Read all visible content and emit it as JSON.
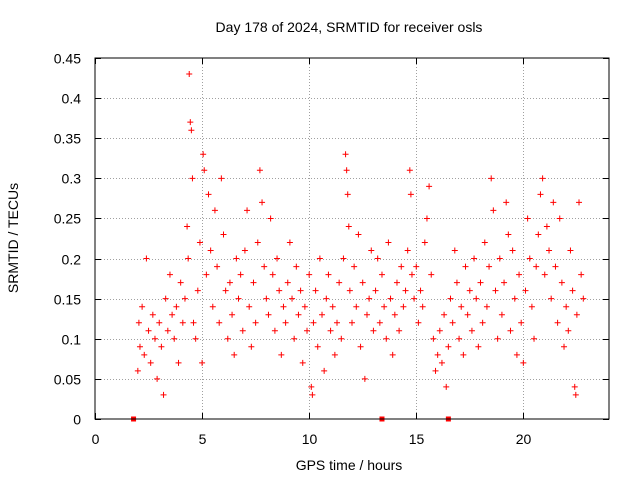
{
  "chart_data": {
    "type": "scatter",
    "title": "Day 178 of 2024, SRMTID for receiver osls",
    "xlabel": "GPS time / hours",
    "ylabel": "SRMTID / TECUs",
    "xlim": [
      0,
      24
    ],
    "ylim": [
      0,
      0.45
    ],
    "x_ticks": [
      {
        "value": 0,
        "label": "0"
      },
      {
        "value": 5,
        "label": "5"
      },
      {
        "value": 10,
        "label": "10"
      },
      {
        "value": 15,
        "label": "15"
      },
      {
        "value": 20,
        "label": "20"
      }
    ],
    "y_ticks": [
      {
        "value": 0,
        "label": "0"
      },
      {
        "value": 0.05,
        "label": "0.05"
      },
      {
        "value": 0.1,
        "label": "0.1"
      },
      {
        "value": 0.15,
        "label": "0.15"
      },
      {
        "value": 0.2,
        "label": "0.2"
      },
      {
        "value": 0.25,
        "label": "0.25"
      },
      {
        "value": 0.3,
        "label": "0.3"
      },
      {
        "value": 0.35,
        "label": "0.35"
      },
      {
        "value": 0.4,
        "label": "0.4"
      },
      {
        "value": 0.45,
        "label": "0.45"
      }
    ],
    "grid": true,
    "marker": "+",
    "series_color": "#ff0000",
    "series": [
      {
        "name": "SRMTID",
        "points": [
          [
            2.0,
            0.06
          ],
          [
            2.05,
            0.12
          ],
          [
            2.1,
            0.09
          ],
          [
            2.2,
            0.14
          ],
          [
            2.3,
            0.08
          ],
          [
            2.4,
            0.2
          ],
          [
            2.5,
            0.11
          ],
          [
            2.6,
            0.07
          ],
          [
            2.7,
            0.13
          ],
          [
            2.8,
            0.1
          ],
          [
            2.9,
            0.05
          ],
          [
            3.0,
            0.12
          ],
          [
            3.1,
            0.09
          ],
          [
            3.2,
            0.03
          ],
          [
            3.3,
            0.15
          ],
          [
            3.4,
            0.11
          ],
          [
            3.5,
            0.18
          ],
          [
            3.6,
            0.13
          ],
          [
            3.7,
            0.1
          ],
          [
            3.8,
            0.14
          ],
          [
            3.9,
            0.07
          ],
          [
            4.0,
            0.17
          ],
          [
            4.1,
            0.12
          ],
          [
            4.2,
            0.15
          ],
          [
            4.3,
            0.24
          ],
          [
            4.35,
            0.2
          ],
          [
            4.4,
            0.43
          ],
          [
            4.45,
            0.37
          ],
          [
            4.5,
            0.36
          ],
          [
            4.55,
            0.3
          ],
          [
            4.6,
            0.12
          ],
          [
            4.7,
            0.1
          ],
          [
            4.8,
            0.16
          ],
          [
            4.9,
            0.22
          ],
          [
            5.0,
            0.07
          ],
          [
            5.05,
            0.33
          ],
          [
            5.1,
            0.31
          ],
          [
            5.2,
            0.18
          ],
          [
            5.3,
            0.28
          ],
          [
            5.4,
            0.21
          ],
          [
            5.5,
            0.14
          ],
          [
            5.6,
            0.26
          ],
          [
            5.7,
            0.19
          ],
          [
            5.8,
            0.12
          ],
          [
            5.9,
            0.3
          ],
          [
            6.0,
            0.23
          ],
          [
            6.1,
            0.16
          ],
          [
            6.2,
            0.1
          ],
          [
            6.3,
            0.17
          ],
          [
            6.4,
            0.13
          ],
          [
            6.5,
            0.08
          ],
          [
            6.6,
            0.2
          ],
          [
            6.7,
            0.15
          ],
          [
            6.8,
            0.18
          ],
          [
            6.9,
            0.11
          ],
          [
            7.0,
            0.21
          ],
          [
            7.1,
            0.26
          ],
          [
            7.2,
            0.14
          ],
          [
            7.3,
            0.09
          ],
          [
            7.4,
            0.17
          ],
          [
            7.5,
            0.12
          ],
          [
            7.6,
            0.22
          ],
          [
            7.7,
            0.31
          ],
          [
            7.8,
            0.27
          ],
          [
            7.9,
            0.19
          ],
          [
            8.0,
            0.15
          ],
          [
            8.1,
            0.13
          ],
          [
            8.2,
            0.25
          ],
          [
            8.3,
            0.18
          ],
          [
            8.4,
            0.11
          ],
          [
            8.5,
            0.2
          ],
          [
            8.6,
            0.16
          ],
          [
            8.7,
            0.08
          ],
          [
            8.8,
            0.14
          ],
          [
            8.9,
            0.12
          ],
          [
            9.0,
            0.17
          ],
          [
            9.1,
            0.22
          ],
          [
            9.2,
            0.15
          ],
          [
            9.3,
            0.1
          ],
          [
            9.4,
            0.19
          ],
          [
            9.5,
            0.13
          ],
          [
            9.6,
            0.16
          ],
          [
            9.7,
            0.07
          ],
          [
            9.8,
            0.14
          ],
          [
            9.9,
            0.11
          ],
          [
            10.0,
            0.18
          ],
          [
            10.1,
            0.04
          ],
          [
            10.15,
            0.03
          ],
          [
            10.2,
            0.12
          ],
          [
            10.3,
            0.16
          ],
          [
            10.4,
            0.09
          ],
          [
            10.5,
            0.2
          ],
          [
            10.6,
            0.13
          ],
          [
            10.7,
            0.06
          ],
          [
            10.8,
            0.15
          ],
          [
            10.9,
            0.18
          ],
          [
            11.0,
            0.11
          ],
          [
            11.1,
            0.14
          ],
          [
            11.2,
            0.08
          ],
          [
            11.3,
            0.12
          ],
          [
            11.4,
            0.17
          ],
          [
            11.5,
            0.1
          ],
          [
            11.6,
            0.2
          ],
          [
            11.7,
            0.33
          ],
          [
            11.75,
            0.31
          ],
          [
            11.8,
            0.28
          ],
          [
            11.85,
            0.24
          ],
          [
            11.9,
            0.16
          ],
          [
            12.0,
            0.12
          ],
          [
            12.1,
            0.19
          ],
          [
            12.2,
            0.14
          ],
          [
            12.3,
            0.23
          ],
          [
            12.4,
            0.09
          ],
          [
            12.5,
            0.17
          ],
          [
            12.6,
            0.05
          ],
          [
            12.7,
            0.13
          ],
          [
            12.8,
            0.15
          ],
          [
            12.9,
            0.21
          ],
          [
            13.0,
            0.11
          ],
          [
            13.1,
            0.16
          ],
          [
            13.2,
            0.2
          ],
          [
            13.3,
            0.12
          ],
          [
            13.4,
            0.18
          ],
          [
            13.5,
            0.14
          ],
          [
            13.6,
            0.1
          ],
          [
            13.7,
            0.22
          ],
          [
            13.8,
            0.15
          ],
          [
            13.9,
            0.08
          ],
          [
            14.0,
            0.13
          ],
          [
            14.1,
            0.17
          ],
          [
            14.2,
            0.11
          ],
          [
            14.3,
            0.19
          ],
          [
            14.4,
            0.14
          ],
          [
            14.5,
            0.16
          ],
          [
            14.6,
            0.21
          ],
          [
            14.7,
            0.31
          ],
          [
            14.75,
            0.28
          ],
          [
            14.8,
            0.18
          ],
          [
            14.9,
            0.15
          ],
          [
            15.0,
            0.19
          ],
          [
            15.1,
            0.12
          ],
          [
            15.2,
            0.16
          ],
          [
            15.3,
            0.14
          ],
          [
            15.4,
            0.22
          ],
          [
            15.5,
            0.25
          ],
          [
            15.6,
            0.29
          ],
          [
            15.7,
            0.18
          ],
          [
            15.8,
            0.1
          ],
          [
            15.9,
            0.06
          ],
          [
            16.0,
            0.08
          ],
          [
            16.1,
            0.11
          ],
          [
            16.2,
            0.07
          ],
          [
            16.3,
            0.13
          ],
          [
            16.4,
            0.04
          ],
          [
            16.5,
            0.09
          ],
          [
            16.6,
            0.15
          ],
          [
            16.7,
            0.12
          ],
          [
            16.8,
            0.21
          ],
          [
            16.9,
            0.17
          ],
          [
            17.0,
            0.1
          ],
          [
            17.1,
            0.14
          ],
          [
            17.2,
            0.08
          ],
          [
            17.3,
            0.19
          ],
          [
            17.4,
            0.13
          ],
          [
            17.5,
            0.16
          ],
          [
            17.6,
            0.11
          ],
          [
            17.7,
            0.2
          ],
          [
            17.8,
            0.15
          ],
          [
            17.9,
            0.09
          ],
          [
            18.0,
            0.17
          ],
          [
            18.1,
            0.12
          ],
          [
            18.2,
            0.22
          ],
          [
            18.3,
            0.14
          ],
          [
            18.4,
            0.19
          ],
          [
            18.5,
            0.3
          ],
          [
            18.6,
            0.26
          ],
          [
            18.7,
            0.16
          ],
          [
            18.8,
            0.1
          ],
          [
            18.9,
            0.2
          ],
          [
            19.0,
            0.13
          ],
          [
            19.1,
            0.17
          ],
          [
            19.2,
            0.27
          ],
          [
            19.3,
            0.23
          ],
          [
            19.4,
            0.11
          ],
          [
            19.5,
            0.21
          ],
          [
            19.6,
            0.15
          ],
          [
            19.7,
            0.08
          ],
          [
            19.8,
            0.18
          ],
          [
            19.9,
            0.12
          ],
          [
            20.0,
            0.07
          ],
          [
            20.1,
            0.16
          ],
          [
            20.2,
            0.25
          ],
          [
            20.3,
            0.2
          ],
          [
            20.4,
            0.14
          ],
          [
            20.5,
            0.1
          ],
          [
            20.6,
            0.19
          ],
          [
            20.7,
            0.23
          ],
          [
            20.8,
            0.28
          ],
          [
            20.9,
            0.3
          ],
          [
            21.0,
            0.18
          ],
          [
            21.1,
            0.24
          ],
          [
            21.2,
            0.21
          ],
          [
            21.3,
            0.15
          ],
          [
            21.4,
            0.27
          ],
          [
            21.5,
            0.19
          ],
          [
            21.6,
            0.12
          ],
          [
            21.7,
            0.25
          ],
          [
            21.8,
            0.17
          ],
          [
            21.9,
            0.09
          ],
          [
            22.0,
            0.14
          ],
          [
            22.1,
            0.11
          ],
          [
            22.2,
            0.21
          ],
          [
            22.3,
            0.16
          ],
          [
            22.4,
            0.04
          ],
          [
            22.45,
            0.03
          ],
          [
            22.5,
            0.13
          ],
          [
            22.6,
            0.27
          ],
          [
            22.7,
            0.18
          ],
          [
            22.8,
            0.15
          ]
        ]
      }
    ],
    "axis_markers": [
      {
        "x": 1.8,
        "y": 0
      },
      {
        "x": 13.4,
        "y": 0
      },
      {
        "x": 16.5,
        "y": 0
      }
    ]
  }
}
